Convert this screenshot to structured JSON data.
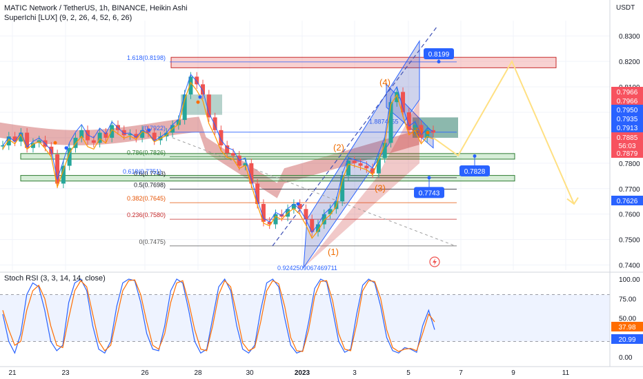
{
  "header": {
    "title": "MATIC Network / TetherUS, 1h, BINANCE, Heikin Ashi",
    "indicator": "SuperIchi [LUX] (9, 2, 26, 4, 52, 6, 26)",
    "currency": "USDT"
  },
  "rsi": {
    "label": "Stoch RSI (3, 3, 14, 14, close)"
  },
  "chart_data": [
    {
      "type": "candlestick",
      "title": "MATIC Network / TetherUS, 1h, BINANCE, Heikin Ashi",
      "ylim": [
        0.738,
        0.836
      ],
      "y_ticks": [
        "0.8300",
        "0.8200",
        "0.8100",
        "0.8000",
        "0.7900",
        "0.7800",
        "0.7700",
        "0.7600",
        "0.7500",
        "0.7400"
      ],
      "x_ticks": [
        "21",
        "23",
        "26",
        "28",
        "30",
        "2023",
        "3",
        "5",
        "7",
        "9",
        "11"
      ],
      "close_series": [
        0.787,
        0.7905,
        0.7885,
        0.792,
        0.786,
        0.788,
        0.789,
        0.7865,
        0.7835,
        0.772,
        0.779,
        0.786,
        0.79,
        0.793,
        0.789,
        0.788,
        0.792,
        0.79,
        0.795,
        0.793,
        0.791,
        0.7915,
        0.79,
        0.793,
        0.792,
        0.789,
        0.7905,
        0.792,
        0.795,
        0.797,
        0.807,
        0.814,
        0.811,
        0.807,
        0.798,
        0.793,
        0.787,
        0.784,
        0.783,
        0.779,
        0.78,
        0.772,
        0.764,
        0.757,
        0.756,
        0.76,
        0.759,
        0.762,
        0.764,
        0.762,
        0.758,
        0.753,
        0.756,
        0.76,
        0.762,
        0.765,
        0.775,
        0.781,
        0.78,
        0.779,
        0.778,
        0.776,
        0.782,
        0.788,
        0.804,
        0.808,
        0.8,
        0.793,
        0.795,
        0.79,
        0.793,
        0.792
      ],
      "fib_levels": [
        {
          "label": "1.618(0.8198)",
          "value": 0.8198
        },
        {
          "label": "(0.7922)",
          "value": 0.7922
        },
        {
          "label": "0.786(0.7826)",
          "value": 0.7826
        },
        {
          "label": "0.6(0.7743)",
          "value": 0.7743
        },
        {
          "label": "0.5(0.7698)",
          "value": 0.7698
        },
        {
          "label": "0.382(0.7645)",
          "value": 0.7645
        },
        {
          "label": "0.236(0.7580)",
          "value": 0.758
        },
        {
          "label": "0(0.7475)",
          "value": 0.7475
        }
      ],
      "extra_fib_labels": [
        "0.618(0.7751)",
        "0.9242509067469711",
        "1.8874655"
      ],
      "wave_labels": [
        "(1)",
        "(2)",
        "(3)",
        "(4)",
        "(5)"
      ],
      "callouts": [
        "0.8199",
        "0.7828",
        "0.7743"
      ],
      "price_labels": [
        {
          "value": "0.7966",
          "color": "#f7525f"
        },
        {
          "value": "0.7966",
          "color": "#f7525f"
        },
        {
          "value": "0.7950",
          "color": "#2962ff"
        },
        {
          "value": "0.7935",
          "color": "#2962ff"
        },
        {
          "value": "0.7913",
          "color": "#2962ff"
        },
        {
          "value": "0.7885",
          "color": "#f7525f"
        },
        {
          "value": "56:03",
          "color": "#f7525f"
        },
        {
          "value": "0.7879",
          "color": "#f7525f"
        },
        {
          "value": "0.7626",
          "color": "#2962ff"
        }
      ]
    },
    {
      "type": "line",
      "title": "Stoch RSI (3, 3, 14, 14, close)",
      "ylim": [
        0,
        100
      ],
      "y_ticks": [
        "100.00",
        "75.00",
        "50.00",
        "25.00",
        "0.00"
      ],
      "band": [
        20,
        80
      ],
      "k_series": [
        55,
        20,
        5,
        30,
        80,
        95,
        90,
        60,
        20,
        8,
        15,
        70,
        95,
        100,
        85,
        40,
        10,
        5,
        20,
        65,
        95,
        100,
        98,
        70,
        30,
        10,
        8,
        40,
        85,
        100,
        95,
        60,
        20,
        5,
        10,
        50,
        90,
        100,
        85,
        40,
        10,
        5,
        15,
        60,
        95,
        100,
        90,
        50,
        15,
        5,
        8,
        45,
        88,
        100,
        96,
        60,
        20,
        6,
        10,
        55,
        92,
        100,
        95,
        65,
        25,
        8,
        5,
        12,
        10,
        6,
        40,
        60,
        35
      ],
      "d_series": [
        60,
        35,
        15,
        20,
        60,
        85,
        92,
        75,
        40,
        15,
        12,
        50,
        85,
        98,
        90,
        55,
        20,
        8,
        15,
        50,
        85,
        98,
        99,
        80,
        45,
        15,
        10,
        30,
        70,
        95,
        98,
        70,
        35,
        10,
        8,
        40,
        80,
        98,
        90,
        55,
        18,
        8,
        12,
        45,
        85,
        98,
        94,
        65,
        25,
        8,
        7,
        35,
        78,
        97,
        98,
        72,
        30,
        10,
        8,
        42,
        85,
        98,
        97,
        75,
        35,
        12,
        7,
        10,
        11,
        8,
        30,
        55,
        45
      ],
      "value_labels": [
        {
          "value": "37.98",
          "color": "#ff6d00"
        },
        {
          "value": "20.99",
          "color": "#2962ff"
        }
      ]
    }
  ]
}
